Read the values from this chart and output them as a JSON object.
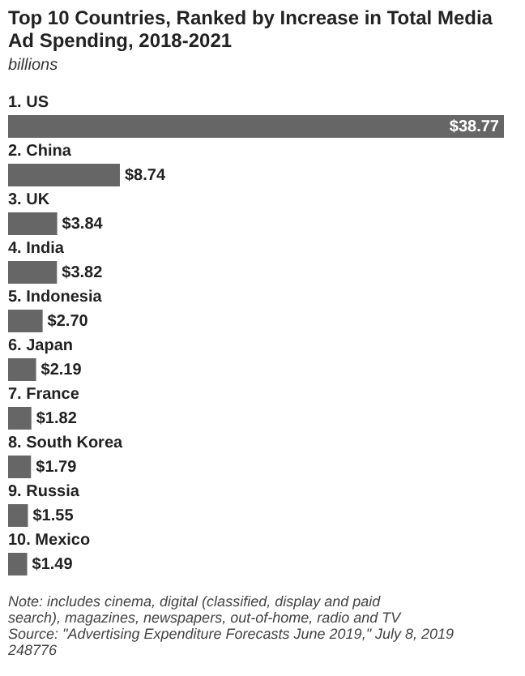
{
  "chart_data": {
    "type": "bar",
    "orientation": "horizontal",
    "title": "Top 10 Countries, Ranked by Increase in Total Media Ad Spending, 2018-2021",
    "subtitle": "billions",
    "categories": [
      "1. US",
      "2. China",
      "3. UK",
      "4. India",
      "5. Indonesia",
      "6. Japan",
      "7. France",
      "8. South Korea",
      "9. Russia",
      "10. Mexico"
    ],
    "values": [
      38.77,
      8.74,
      3.84,
      3.82,
      2.7,
      2.19,
      1.82,
      1.79,
      1.55,
      1.49
    ],
    "value_labels": [
      "$38.77",
      "$8.74",
      "$3.84",
      "$3.82",
      "$2.70",
      "$2.19",
      "$1.82",
      "$1.79",
      "$1.55",
      "$1.49"
    ],
    "color": "#666666",
    "annotations": [
      "Note: includes cinema, digital (classified, display and paid search), magazines, newspapers, out-of-home, radio and TV",
      "Source: \"Advertising Expenditure Forecasts June 2019,\" July 8, 2019",
      "248776"
    ]
  }
}
